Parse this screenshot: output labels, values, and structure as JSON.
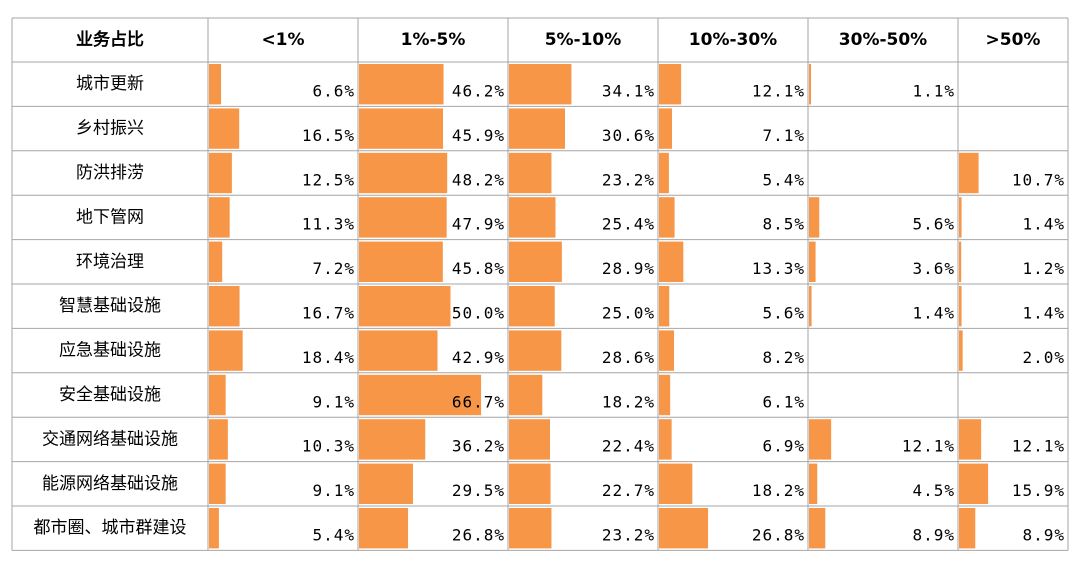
{
  "chart_data": {
    "type": "table-bars",
    "corner_label": "业务占比",
    "categories": [
      "城市更新",
      "乡村振兴",
      "防洪排涝",
      "地下管网",
      "环境治理",
      "智慧基础设施",
      "应急基础设施",
      "安全基础设施",
      "交通网络基础设施",
      "能源网络基础设施",
      "都市圈、城市群建设"
    ],
    "series": [
      {
        "name": "<1%",
        "color": "#f79646",
        "values": [
          6.6,
          16.5,
          12.5,
          11.3,
          7.2,
          16.7,
          18.4,
          9.1,
          10.3,
          9.1,
          5.4
        ],
        "value_labels": [
          "6.6%",
          "16.5%",
          "12.5%",
          "11.3%",
          "7.2%",
          "16.7%",
          "18.4%",
          "9.1%",
          "10.3%",
          "9.1%",
          "5.4%"
        ]
      },
      {
        "name": "1%-5%",
        "color": "#f79646",
        "values": [
          46.2,
          45.9,
          48.2,
          47.9,
          45.8,
          50.0,
          42.9,
          66.7,
          36.2,
          29.5,
          26.8
        ],
        "value_labels": [
          "46.2%",
          "45.9%",
          "48.2%",
          "47.9%",
          "45.8%",
          "50.0%",
          "42.9%",
          "66.7%",
          "36.2%",
          "29.5%",
          "26.8%"
        ]
      },
      {
        "name": "5%-10%",
        "color": "#f79646",
        "values": [
          34.1,
          30.6,
          23.2,
          25.4,
          28.9,
          25.0,
          28.6,
          18.2,
          22.4,
          22.7,
          23.2
        ],
        "value_labels": [
          "34.1%",
          "30.6%",
          "23.2%",
          "25.4%",
          "28.9%",
          "25.0%",
          "28.6%",
          "18.2%",
          "22.4%",
          "22.7%",
          "23.2%"
        ]
      },
      {
        "name": "10%-30%",
        "color": "#f79646",
        "values": [
          12.1,
          7.1,
          5.4,
          8.5,
          13.3,
          5.6,
          8.2,
          6.1,
          6.9,
          18.2,
          26.8
        ],
        "value_labels": [
          "12.1%",
          "7.1%",
          "5.4%",
          "8.5%",
          "13.3%",
          "5.6%",
          "8.2%",
          "6.1%",
          "6.9%",
          "18.2%",
          "26.8%"
        ]
      },
      {
        "name": "30%-50%",
        "color": "#f79646",
        "values": [
          1.1,
          null,
          null,
          5.6,
          3.6,
          1.4,
          null,
          null,
          12.1,
          4.5,
          8.9
        ],
        "value_labels": [
          "1.1%",
          null,
          null,
          "5.6%",
          "3.6%",
          "1.4%",
          null,
          null,
          "12.1%",
          "4.5%",
          "8.9%"
        ]
      },
      {
        "name": ">50%",
        "color": "#f79646",
        "values": [
          null,
          null,
          10.7,
          1.4,
          1.2,
          1.4,
          2.0,
          null,
          12.1,
          15.9,
          8.9
        ],
        "value_labels": [
          null,
          null,
          "10.7%",
          "1.4%",
          "1.2%",
          "1.4%",
          "2.0%",
          null,
          "12.1%",
          "15.9%",
          "8.9%"
        ]
      }
    ]
  }
}
